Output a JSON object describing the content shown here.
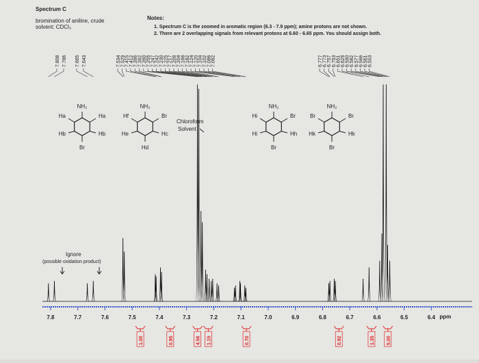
{
  "header": {
    "title": "Spectrum C",
    "subtitle": "bromination of aniline, crude",
    "solvent": "solvent: CDCl₃"
  },
  "notes": {
    "title": "Notes:",
    "items": [
      "1. Spectrum C is the zoomed in aromatic region (6.3 - 7.9 ppm); amine protons are not shown.",
      "2. There are 2 overlapping signals from relevant protons at 6.60 - 6.65 ppm. You should assign both."
    ]
  },
  "molecules": [
    {
      "labels": [
        "NH₂",
        "Ha",
        "Ha",
        "Hb",
        "Hb",
        "Br"
      ]
    },
    {
      "labels": [
        "NH₂",
        "Hf",
        "Br",
        "He",
        "Hc",
        "Hd"
      ]
    },
    {
      "labels": [
        "NH₂",
        "Hi",
        "Br",
        "Hi",
        "Hh",
        "Br"
      ]
    },
    {
      "labels": [
        "NH₂",
        "Br",
        "Br",
        "Hk",
        "Hk",
        "Br"
      ]
    }
  ],
  "annotations": {
    "solvent": [
      "Chloroform",
      "Solvent"
    ],
    "ignore": "Ignore",
    "ignore_note": "(possible oxidation product)"
  },
  "chart_data": {
    "type": "spectrum",
    "x": [
      7.808,
      7.786,
      7.665,
      7.643,
      7.534,
      7.529,
      7.415,
      7.412,
      7.396,
      7.392,
      7.26,
      7.255,
      7.247,
      7.242,
      7.23,
      7.225,
      7.217,
      7.209,
      7.204,
      7.188,
      7.182,
      7.124,
      7.12,
      7.104,
      7.102,
      7.086,
      7.082,
      6.777,
      6.773,
      6.757,
      6.753,
      6.651,
      6.629,
      6.59,
      6.582,
      6.577,
      6.566,
      6.561,
      6.553
    ],
    "x_labels": [
      "7.808",
      "7.786",
      "7.665",
      "7.643",
      "7.534",
      "7.529",
      "7.415",
      "7.412",
      "7.396",
      "7.392",
      "7.260",
      "7.255",
      "7.247",
      "7.242",
      "7.230",
      "7.225",
      "7.217",
      "7.209",
      "7.204",
      "7.188",
      "7.182",
      "7.124",
      "7.120",
      "7.104",
      "7.102",
      "7.086",
      "7.082",
      "6.777",
      "6.773",
      "6.757",
      "6.753",
      "6.651",
      "6.629",
      "6.590",
      "6.582",
      "6.577",
      "6.566",
      "6.561",
      "6.553"
    ],
    "values": [
      8,
      9,
      8,
      9,
      28,
      22,
      12,
      11,
      15,
      13,
      96,
      94,
      40,
      35,
      14,
      12,
      10,
      9,
      10,
      8,
      7,
      6,
      7,
      9,
      8,
      7,
      6,
      8,
      9,
      10,
      9,
      10,
      15,
      18,
      30,
      96,
      96,
      25,
      18
    ],
    "color": "#111111",
    "xlim": [
      7.83,
      6.25
    ],
    "ylim": [
      0,
      100
    ],
    "xticks": [
      7.8,
      7.7,
      7.6,
      7.5,
      7.4,
      7.3,
      7.2,
      7.1,
      {
        "value": 7,
        "label": "7.0"
      },
      6.9,
      6.8,
      6.7,
      6.6,
      6.5,
      6.4
    ],
    "x_label": "ppm",
    "integrals": {
      "x": [
        7.47,
        7.36,
        7.26,
        7.22,
        7.08,
        6.74,
        6.62,
        6.56
      ],
      "values": [
        1,
        0.95,
        4.56,
        1.15,
        0.7,
        0.92,
        1.35,
        5
      ],
      "value_labels": [
        "1.00",
        "0.95",
        "4.56",
        "1.15",
        "0.70",
        "0.92",
        "1.35",
        "5.00"
      ],
      "color": "#d22"
    }
  }
}
